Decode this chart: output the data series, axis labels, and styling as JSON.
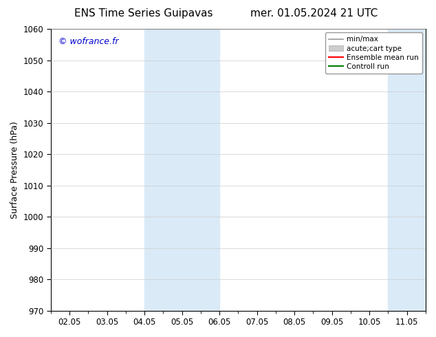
{
  "title_left": "ENS Time Series Guipavas",
  "title_right": "mer. 01.05.2024 21 UTC",
  "ylabel": "Surface Pressure (hPa)",
  "ylim": [
    970,
    1060
  ],
  "yticks": [
    970,
    980,
    990,
    1000,
    1010,
    1020,
    1030,
    1040,
    1050,
    1060
  ],
  "xtick_labels": [
    "02.05",
    "03.05",
    "04.05",
    "05.05",
    "06.05",
    "07.05",
    "08.05",
    "09.05",
    "10.05",
    "11.05"
  ],
  "xtick_positions": [
    0,
    1,
    2,
    3,
    4,
    5,
    6,
    7,
    8,
    9
  ],
  "xlim": [
    -0.5,
    9.5
  ],
  "shaded_bands": [
    {
      "xmin": 2.0,
      "xmax": 2.5
    },
    {
      "xmin": 2.5,
      "xmax": 4.0
    },
    {
      "xmin": 8.5,
      "xmax": 9.0
    },
    {
      "xmin": 9.0,
      "xmax": 9.5
    }
  ],
  "shaded_color": "#daeaf7",
  "background_color": "#ffffff",
  "watermark": "© wofrance.fr",
  "watermark_color": "#0000cc",
  "legend_labels": [
    "min/max",
    "acute;cart type",
    "Ensemble mean run",
    "Controll run"
  ],
  "legend_colors": [
    "#999999",
    "#cccccc",
    "#ff0000",
    "#008000"
  ],
  "legend_linewidths": [
    1.2,
    5,
    1.5,
    1.5
  ],
  "grid_color": "#cccccc",
  "spine_color": "#000000",
  "title_fontsize": 11,
  "label_fontsize": 9,
  "tick_fontsize": 8.5,
  "watermark_fontsize": 9
}
